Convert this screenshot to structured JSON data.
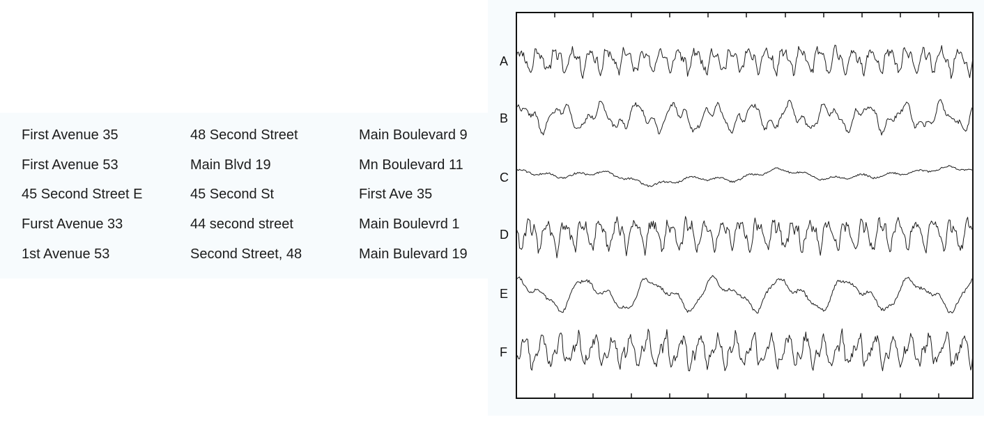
{
  "addresses": {
    "columns": [
      [
        "First Avenue 35",
        "First Avenue 53",
        "45 Second Street E",
        "Furst Avenue 33",
        "1st Avenue 53"
      ],
      [
        "48 Second Street",
        "Main Blvd 19",
        "45 Second St",
        "44 second street",
        "Second Street, 48"
      ],
      [
        "Main Boulevard 9",
        "Mn Boulevard 11",
        "First Ave 35",
        "Main Boulevrd 1",
        "Main Bulevard 19"
      ]
    ]
  },
  "signals": {
    "labels": [
      "A",
      "B",
      "C",
      "D",
      "E",
      "F"
    ],
    "traces": [
      {
        "label": "A",
        "style": "fast-oscillation"
      },
      {
        "label": "B",
        "style": "medium-oscillation"
      },
      {
        "label": "C",
        "style": "slow-drift"
      },
      {
        "label": "D",
        "style": "fast-oscillation"
      },
      {
        "label": "E",
        "style": "slow-oscillation"
      },
      {
        "label": "F",
        "style": "fast-oscillation"
      }
    ],
    "colors": {
      "trace": "#1a1a1a",
      "frame": "#111111",
      "panel": "#f7fbfd"
    }
  }
}
